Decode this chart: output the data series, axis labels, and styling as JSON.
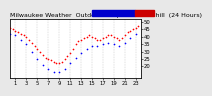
{
  "title": "Milwaukee Weather  Outdoor Temp  vs Wind Chill  (24 Hours)",
  "background_color": "#e8e8e8",
  "plot_bg_color": "#ffffff",
  "grid_color": "#aaaaaa",
  "legend_blue_color": "#0000cc",
  "legend_red_color": "#cc0000",
  "ylim": [
    12,
    52
  ],
  "xlim": [
    0,
    24
  ],
  "yticks": [
    20,
    25,
    30,
    35,
    40,
    45,
    50
  ],
  "ytick_labels": [
    "20",
    "25",
    "30",
    "35",
    "40",
    "45",
    "50"
  ],
  "xticks": [
    1,
    3,
    5,
    7,
    9,
    11,
    13,
    15,
    17,
    19,
    21,
    23
  ],
  "xlabel_labels": [
    "1",
    "3",
    "5",
    "7",
    "9",
    "11",
    "13",
    "15",
    "17",
    "19",
    "21",
    "23"
  ],
  "temp_x": [
    0,
    0.5,
    1,
    1.5,
    2,
    2.5,
    3,
    3.5,
    4,
    4.5,
    5,
    5.5,
    6,
    6.5,
    7,
    7.5,
    8,
    8.5,
    9,
    9.5,
    10,
    10.5,
    11,
    11.5,
    12,
    12.5,
    13,
    13.5,
    14,
    14.5,
    15,
    15.5,
    16,
    16.5,
    17,
    17.5,
    18,
    18.5,
    19,
    19.5,
    20,
    20.5,
    21,
    21.5,
    22,
    22.5,
    23,
    23.5
  ],
  "temp_y": [
    46,
    45,
    44,
    43,
    42,
    41,
    40,
    38,
    36,
    34,
    32,
    30,
    28,
    26,
    25,
    24,
    23,
    22,
    22,
    23,
    25,
    27,
    29,
    32,
    35,
    37,
    38,
    39,
    40,
    41,
    40,
    39,
    38,
    38,
    39,
    40,
    41,
    41,
    40,
    39,
    38,
    39,
    41,
    43,
    44,
    45,
    46,
    47
  ],
  "wind_x": [
    0,
    1,
    2,
    3,
    4,
    5,
    6,
    7,
    8,
    9,
    10,
    11,
    12,
    13,
    14,
    15,
    16,
    17,
    18,
    19,
    20,
    21,
    22,
    23
  ],
  "wind_y": [
    42,
    41,
    38,
    35,
    30,
    25,
    21,
    18,
    16,
    16,
    18,
    22,
    26,
    29,
    32,
    34,
    34,
    35,
    36,
    35,
    34,
    36,
    39,
    42
  ],
  "temp_dot_color": "#ff0000",
  "wind_dot_color": "#0000ff",
  "dot_size": 1.5,
  "title_fontsize": 4.5,
  "tick_fontsize": 3.8
}
